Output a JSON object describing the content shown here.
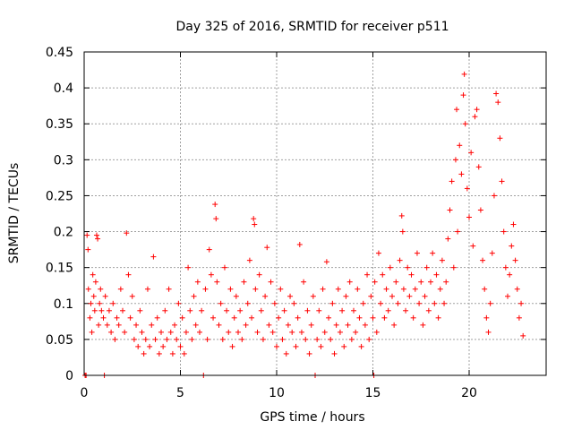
{
  "chart_data": {
    "type": "scatter",
    "title": "Day 325 of 2016, SRMTID for receiver p511",
    "xlabel": "GPS time / hours",
    "ylabel": "SRMTID / TECUs",
    "xlim": [
      0,
      24
    ],
    "ylim": [
      0,
      0.45
    ],
    "xticks": [
      0,
      5,
      10,
      15,
      20
    ],
    "xtick_labels": [
      "0",
      "5",
      "10",
      "15",
      "20"
    ],
    "yticks": [
      0,
      0.05,
      0.1,
      0.15,
      0.2,
      0.25,
      0.3,
      0.35,
      0.4,
      0.45
    ],
    "ytick_labels": [
      "0",
      "0.05",
      "0.1",
      "0.15",
      "0.2",
      "0.25",
      "0.3",
      "0.35",
      "0.4",
      "0.45"
    ],
    "grid": true,
    "marker": "+",
    "color": "#ff0000",
    "series": [
      {
        "name": "SRMTID",
        "points": [
          [
            0.05,
            0.0
          ],
          [
            0.1,
            0.0
          ],
          [
            0.15,
            0.195
          ],
          [
            0.2,
            0.175
          ],
          [
            0.22,
            0.12
          ],
          [
            0.3,
            0.08
          ],
          [
            0.35,
            0.1
          ],
          [
            0.4,
            0.06
          ],
          [
            0.45,
            0.14
          ],
          [
            0.5,
            0.11
          ],
          [
            0.55,
            0.09
          ],
          [
            0.6,
            0.13
          ],
          [
            0.65,
            0.195
          ],
          [
            0.7,
            0.19
          ],
          [
            0.75,
            0.07
          ],
          [
            0.8,
            0.1
          ],
          [
            0.85,
            0.12
          ],
          [
            0.9,
            0.09
          ],
          [
            1.0,
            0.08
          ],
          [
            1.05,
            0.0
          ],
          [
            1.1,
            0.11
          ],
          [
            1.2,
            0.07
          ],
          [
            1.3,
            0.09
          ],
          [
            1.4,
            0.06
          ],
          [
            1.5,
            0.1
          ],
          [
            1.6,
            0.05
          ],
          [
            1.7,
            0.08
          ],
          [
            1.8,
            0.07
          ],
          [
            1.9,
            0.12
          ],
          [
            2.0,
            0.09
          ],
          [
            2.1,
            0.06
          ],
          [
            2.2,
            0.198
          ],
          [
            2.3,
            0.14
          ],
          [
            2.4,
            0.08
          ],
          [
            2.5,
            0.11
          ],
          [
            2.6,
            0.05
          ],
          [
            2.7,
            0.07
          ],
          [
            2.8,
            0.04
          ],
          [
            2.9,
            0.09
          ],
          [
            3.0,
            0.06
          ],
          [
            3.1,
            0.03
          ],
          [
            3.2,
            0.05
          ],
          [
            3.3,
            0.12
          ],
          [
            3.4,
            0.04
          ],
          [
            3.5,
            0.07
          ],
          [
            3.6,
            0.165
          ],
          [
            3.7,
            0.05
          ],
          [
            3.8,
            0.08
          ],
          [
            3.9,
            0.03
          ],
          [
            4.0,
            0.06
          ],
          [
            4.1,
            0.04
          ],
          [
            4.2,
            0.09
          ],
          [
            4.3,
            0.05
          ],
          [
            4.4,
            0.12
          ],
          [
            4.5,
            0.06
          ],
          [
            4.6,
            0.03
          ],
          [
            4.7,
            0.07
          ],
          [
            4.8,
            0.05
          ],
          [
            4.9,
            0.1
          ],
          [
            5.0,
            0.04
          ],
          [
            5.1,
            0.08
          ],
          [
            5.2,
            0.03
          ],
          [
            5.3,
            0.06
          ],
          [
            5.4,
            0.15
          ],
          [
            5.5,
            0.09
          ],
          [
            5.6,
            0.05
          ],
          [
            5.7,
            0.11
          ],
          [
            5.8,
            0.07
          ],
          [
            5.9,
            0.13
          ],
          [
            6.0,
            0.06
          ],
          [
            6.1,
            0.09
          ],
          [
            6.2,
            0.0
          ],
          [
            6.3,
            0.12
          ],
          [
            6.4,
            0.05
          ],
          [
            6.5,
            0.175
          ],
          [
            6.6,
            0.14
          ],
          [
            6.7,
            0.08
          ],
          [
            6.8,
            0.238
          ],
          [
            6.85,
            0.218
          ],
          [
            6.9,
            0.13
          ],
          [
            7.0,
            0.07
          ],
          [
            7.1,
            0.1
          ],
          [
            7.2,
            0.05
          ],
          [
            7.3,
            0.15
          ],
          [
            7.4,
            0.09
          ],
          [
            7.5,
            0.06
          ],
          [
            7.6,
            0.12
          ],
          [
            7.7,
            0.04
          ],
          [
            7.8,
            0.08
          ],
          [
            7.9,
            0.11
          ],
          [
            8.0,
            0.06
          ],
          [
            8.1,
            0.09
          ],
          [
            8.2,
            0.05
          ],
          [
            8.3,
            0.13
          ],
          [
            8.4,
            0.07
          ],
          [
            8.5,
            0.1
          ],
          [
            8.6,
            0.16
          ],
          [
            8.7,
            0.08
          ],
          [
            8.8,
            0.218
          ],
          [
            8.85,
            0.21
          ],
          [
            8.9,
            0.12
          ],
          [
            9.0,
            0.06
          ],
          [
            9.1,
            0.14
          ],
          [
            9.2,
            0.09
          ],
          [
            9.3,
            0.05
          ],
          [
            9.4,
            0.11
          ],
          [
            9.5,
            0.178
          ],
          [
            9.6,
            0.07
          ],
          [
            9.7,
            0.13
          ],
          [
            9.8,
            0.06
          ],
          [
            9.9,
            0.1
          ],
          [
            10.0,
            0.04
          ],
          [
            10.1,
            0.08
          ],
          [
            10.2,
            0.12
          ],
          [
            10.3,
            0.05
          ],
          [
            10.4,
            0.09
          ],
          [
            10.5,
            0.03
          ],
          [
            10.6,
            0.07
          ],
          [
            10.7,
            0.11
          ],
          [
            10.8,
            0.06
          ],
          [
            10.9,
            0.1
          ],
          [
            11.0,
            0.04
          ],
          [
            11.1,
            0.08
          ],
          [
            11.2,
            0.182
          ],
          [
            11.3,
            0.06
          ],
          [
            11.4,
            0.13
          ],
          [
            11.5,
            0.05
          ],
          [
            11.6,
            0.09
          ],
          [
            11.7,
            0.03
          ],
          [
            11.8,
            0.07
          ],
          [
            11.9,
            0.11
          ],
          [
            12.0,
            0.0
          ],
          [
            12.1,
            0.05
          ],
          [
            12.2,
            0.09
          ],
          [
            12.3,
            0.04
          ],
          [
            12.4,
            0.12
          ],
          [
            12.5,
            0.06
          ],
          [
            12.6,
            0.158
          ],
          [
            12.7,
            0.08
          ],
          [
            12.8,
            0.05
          ],
          [
            12.9,
            0.1
          ],
          [
            13.0,
            0.03
          ],
          [
            13.1,
            0.07
          ],
          [
            13.2,
            0.12
          ],
          [
            13.3,
            0.06
          ],
          [
            13.4,
            0.09
          ],
          [
            13.5,
            0.04
          ],
          [
            13.6,
            0.11
          ],
          [
            13.7,
            0.07
          ],
          [
            13.8,
            0.13
          ],
          [
            13.9,
            0.05
          ],
          [
            14.0,
            0.09
          ],
          [
            14.1,
            0.06
          ],
          [
            14.2,
            0.12
          ],
          [
            14.3,
            0.08
          ],
          [
            14.4,
            0.04
          ],
          [
            14.5,
            0.1
          ],
          [
            14.6,
            0.07
          ],
          [
            14.7,
            0.14
          ],
          [
            14.8,
            0.05
          ],
          [
            14.9,
            0.11
          ],
          [
            15.0,
            0.08
          ],
          [
            15.05,
            0.0
          ],
          [
            15.1,
            0.13
          ],
          [
            15.2,
            0.06
          ],
          [
            15.3,
            0.17
          ],
          [
            15.4,
            0.1
          ],
          [
            15.5,
            0.14
          ],
          [
            15.6,
            0.08
          ],
          [
            15.7,
            0.12
          ],
          [
            15.8,
            0.09
          ],
          [
            15.9,
            0.15
          ],
          [
            16.0,
            0.11
          ],
          [
            16.1,
            0.07
          ],
          [
            16.2,
            0.13
          ],
          [
            16.3,
            0.1
          ],
          [
            16.4,
            0.16
          ],
          [
            16.5,
            0.222
          ],
          [
            16.55,
            0.2
          ],
          [
            16.6,
            0.12
          ],
          [
            16.7,
            0.09
          ],
          [
            16.8,
            0.15
          ],
          [
            16.9,
            0.11
          ],
          [
            17.0,
            0.14
          ],
          [
            17.1,
            0.08
          ],
          [
            17.2,
            0.12
          ],
          [
            17.3,
            0.17
          ],
          [
            17.4,
            0.1
          ],
          [
            17.5,
            0.13
          ],
          [
            17.6,
            0.07
          ],
          [
            17.7,
            0.11
          ],
          [
            17.8,
            0.15
          ],
          [
            17.9,
            0.09
          ],
          [
            18.0,
            0.13
          ],
          [
            18.1,
            0.17
          ],
          [
            18.2,
            0.1
          ],
          [
            18.3,
            0.14
          ],
          [
            18.4,
            0.08
          ],
          [
            18.5,
            0.12
          ],
          [
            18.6,
            0.16
          ],
          [
            18.7,
            0.1
          ],
          [
            18.8,
            0.13
          ],
          [
            18.9,
            0.19
          ],
          [
            19.0,
            0.23
          ],
          [
            19.1,
            0.27
          ],
          [
            19.2,
            0.15
          ],
          [
            19.3,
            0.3
          ],
          [
            19.35,
            0.37
          ],
          [
            19.4,
            0.2
          ],
          [
            19.5,
            0.32
          ],
          [
            19.6,
            0.28
          ],
          [
            19.7,
            0.39
          ],
          [
            19.75,
            0.419
          ],
          [
            19.8,
            0.35
          ],
          [
            19.9,
            0.26
          ],
          [
            20.0,
            0.22
          ],
          [
            20.1,
            0.31
          ],
          [
            20.2,
            0.18
          ],
          [
            20.3,
            0.36
          ],
          [
            20.4,
            0.37
          ],
          [
            20.5,
            0.29
          ],
          [
            20.6,
            0.23
          ],
          [
            20.7,
            0.16
          ],
          [
            20.8,
            0.12
          ],
          [
            20.9,
            0.08
          ],
          [
            21.0,
            0.06
          ],
          [
            21.1,
            0.1
          ],
          [
            21.2,
            0.17
          ],
          [
            21.3,
            0.25
          ],
          [
            21.4,
            0.392
          ],
          [
            21.5,
            0.38
          ],
          [
            21.6,
            0.33
          ],
          [
            21.7,
            0.27
          ],
          [
            21.8,
            0.2
          ],
          [
            21.9,
            0.15
          ],
          [
            22.0,
            0.11
          ],
          [
            22.1,
            0.14
          ],
          [
            22.2,
            0.18
          ],
          [
            22.3,
            0.21
          ],
          [
            22.4,
            0.16
          ],
          [
            22.5,
            0.12
          ],
          [
            22.6,
            0.08
          ],
          [
            22.7,
            0.1
          ],
          [
            22.8,
            0.055
          ]
        ]
      }
    ]
  }
}
